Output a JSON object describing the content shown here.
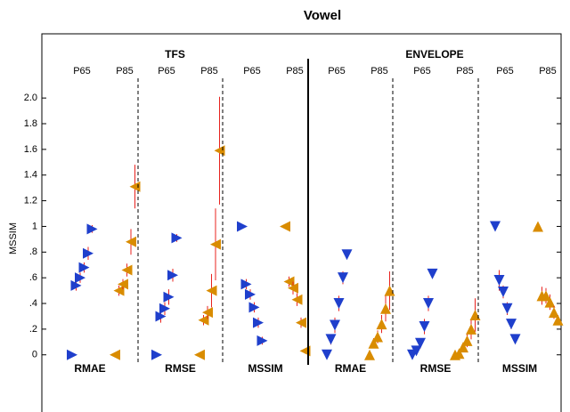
{
  "chart_data": {
    "type": "scatter",
    "title": "Vowel",
    "y_label": "MSSIM",
    "ylim": [
      -0.48,
      2.5
    ],
    "yticks": [
      0,
      {
        "value": 0.2,
        "label": ".2"
      },
      {
        "value": 0.4,
        "label": ".4"
      },
      {
        "value": 0.6,
        "label": ".6"
      },
      {
        "value": 0.8,
        "label": ".8"
      },
      1,
      1.2,
      1.4,
      1.6,
      1.8,
      {
        "value": 2,
        "label": "2.0"
      }
    ],
    "error_color": "#e8231f",
    "sections": [
      {
        "label": "TFS",
        "markers": [
          "right",
          "left"
        ],
        "panels": [
          {
            "metric": "RMAE",
            "series": [
              {
                "name": "P65",
                "color": "#1f3fcc",
                "values": [
                  0,
                  0.54,
                  0.6,
                  0.68,
                  0.79,
                  0.98
                ],
                "errors": [
                  0.01,
                  0.04,
                  0.04,
                  0.04,
                  0.05,
                  0.03
                ]
              },
              {
                "name": "P85",
                "color": "#d98c00",
                "values": [
                  0,
                  0.5,
                  0.55,
                  0.66,
                  0.88,
                  1.31
                ],
                "errors": [
                  0.01,
                  0.04,
                  0.04,
                  0.05,
                  0.1,
                  0.17
                ]
              }
            ]
          },
          {
            "metric": "RMSE",
            "series": [
              {
                "name": "P65",
                "color": "#1f3fcc",
                "values": [
                  0,
                  0.3,
                  0.36,
                  0.45,
                  0.62,
                  0.91
                ],
                "errors": [
                  0.01,
                  0.05,
                  0.05,
                  0.06,
                  0.05,
                  0.03
                ]
              },
              {
                "name": "P85",
                "color": "#d98c00",
                "values": [
                  0,
                  0.27,
                  0.33,
                  0.5,
                  0.86,
                  1.59
                ],
                "errors": [
                  0.01,
                  0.04,
                  0.05,
                  0.13,
                  0.28,
                  0.42
                ]
              }
            ]
          },
          {
            "metric": "MSSIM",
            "series": [
              {
                "name": "P65",
                "color": "#1f3fcc",
                "values": [
                  1,
                  0.55,
                  0.47,
                  0.37,
                  0.25,
                  0.11
                ],
                "errors": [
                  0.01,
                  0.04,
                  0.04,
                  0.04,
                  0.04,
                  0.03
                ]
              },
              {
                "name": "P85",
                "color": "#d98c00",
                "values": [
                  1,
                  0.57,
                  0.52,
                  0.43,
                  0.25,
                  0.03
                ],
                "errors": [
                  0.01,
                  0.04,
                  0.05,
                  0.05,
                  0.04,
                  0.02
                ]
              }
            ]
          }
        ]
      },
      {
        "label": "ENVELOPE",
        "markers": [
          "down",
          "up"
        ],
        "panels": [
          {
            "metric": "RMAE",
            "series": [
              {
                "name": "P65",
                "color": "#1f3fcc",
                "values": [
                  0,
                  0.12,
                  0.23,
                  0.4,
                  0.6,
                  0.78
                ],
                "errors": [
                  0.01,
                  0.04,
                  0.06,
                  0.06,
                  0.05,
                  0.03
                ]
              },
              {
                "name": "P85",
                "color": "#d98c00",
                "values": [
                  0,
                  0.09,
                  0.14,
                  0.24,
                  0.36,
                  0.5
                ],
                "errors": [
                  0.01,
                  0.04,
                  0.05,
                  0.07,
                  0.1,
                  0.15
                ]
              }
            ]
          },
          {
            "metric": "RMSE",
            "series": [
              {
                "name": "P65",
                "color": "#1f3fcc",
                "values": [
                  0,
                  0.03,
                  0.09,
                  0.22,
                  0.4,
                  0.63
                ],
                "errors": [
                  0.01,
                  0.02,
                  0.04,
                  0.06,
                  0.06,
                  0.03
                ]
              },
              {
                "name": "P85",
                "color": "#d98c00",
                "values": [
                  0,
                  0.01,
                  0.06,
                  0.11,
                  0.2,
                  0.31
                ],
                "errors": [
                  0.01,
                  0.02,
                  0.03,
                  0.05,
                  0.08,
                  0.13
                ]
              }
            ]
          },
          {
            "metric": "MSSIM",
            "series": [
              {
                "name": "P65",
                "color": "#1f3fcc",
                "values": [
                  1,
                  0.58,
                  0.49,
                  0.36,
                  0.24,
                  0.12
                ],
                "errors": [
                  0.01,
                  0.08,
                  0.05,
                  0.05,
                  0.04,
                  0.03
                ]
              },
              {
                "name": "P85",
                "color": "#d98c00",
                "values": [
                  1,
                  0.46,
                  0.46,
                  0.41,
                  0.33,
                  0.27
                ],
                "errors": [
                  0.01,
                  0.07,
                  0.06,
                  0.06,
                  0.05,
                  0.04
                ]
              }
            ]
          }
        ]
      }
    ]
  }
}
